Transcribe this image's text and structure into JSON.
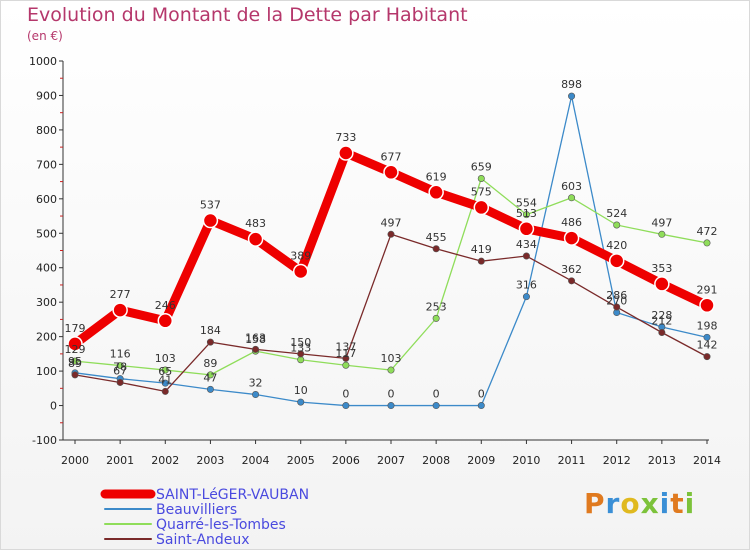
{
  "header": {
    "title": "Evolution du Montant de la Dette par Habitant",
    "unit": "(en €)"
  },
  "logo": {
    "text": "Proxiti"
  },
  "chart_data": {
    "type": "line",
    "title": "Evolution du Montant de la Dette par Habitant",
    "ylabel": "(en €)",
    "xlabel": "",
    "ylim": [
      -100,
      1000
    ],
    "yticks": [
      -100,
      0,
      100,
      200,
      300,
      400,
      500,
      600,
      700,
      800,
      900,
      1000
    ],
    "grid": false,
    "legend": "bottom-left",
    "categories": [
      "2000",
      "2001",
      "2002",
      "2003",
      "2004",
      "2005",
      "2006",
      "2007",
      "2008",
      "2009",
      "2010",
      "2011",
      "2012",
      "2013",
      "2014"
    ],
    "series": [
      {
        "name": "SAINT-LéGER-VAUBAN",
        "color": "#ee0000",
        "values": [
          179,
          277,
          246,
          537,
          483,
          389,
          733,
          677,
          619,
          575,
          513,
          486,
          420,
          353,
          291
        ]
      },
      {
        "name": "Beauvilliers",
        "color": "#3c8ac9",
        "values": [
          95,
          78,
          65,
          47,
          32,
          10,
          0,
          0,
          0,
          0,
          316,
          898,
          270,
          228,
          198
        ]
      },
      {
        "name": "Quarré-les-Tombes",
        "color": "#8fdd5a",
        "values": [
          129,
          116,
          103,
          89,
          158,
          133,
          117,
          103,
          253,
          659,
          554,
          603,
          524,
          497,
          472
        ]
      },
      {
        "name": "Saint-Andeux",
        "color": "#7a2a2a",
        "values": [
          89,
          67,
          41,
          184,
          163,
          150,
          137,
          497,
          455,
          419,
          434,
          362,
          286,
          212,
          142
        ]
      }
    ]
  }
}
